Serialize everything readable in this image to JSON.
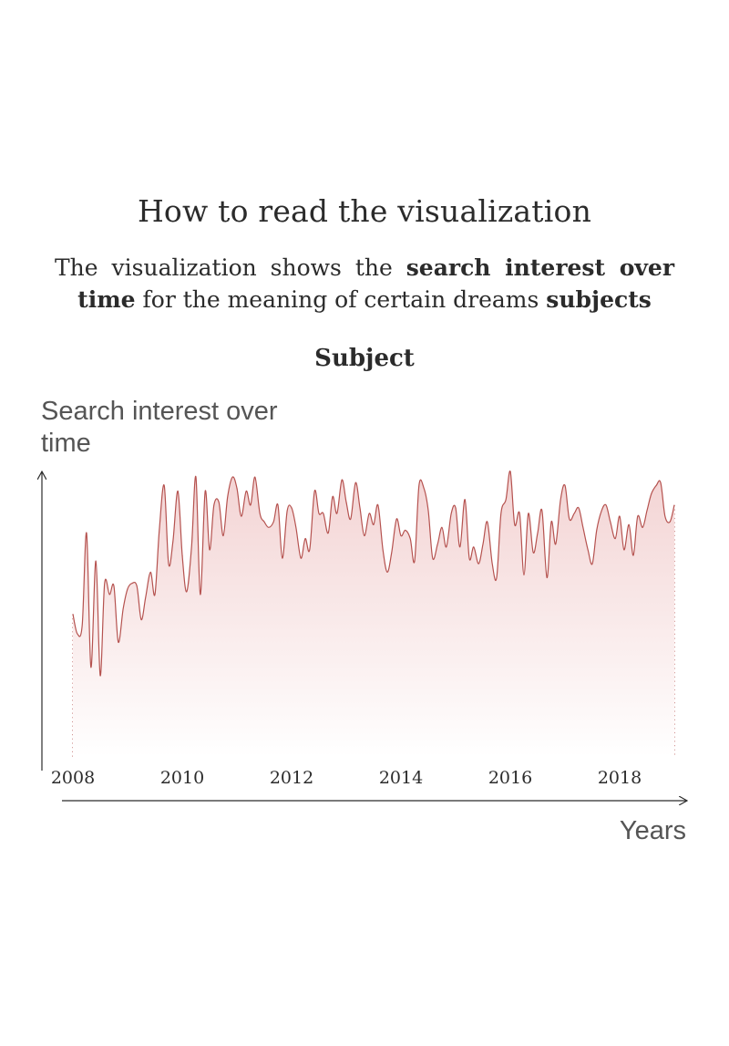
{
  "page": {
    "heading": "How to read the visualization",
    "intro_parts": [
      "The visualization shows the ",
      "search interest over time",
      " for the meaning of certain dreams ",
      "subjects"
    ],
    "subject_title": "Subject",
    "y_axis_label": "Search interest over time",
    "x_axis_label": "Years"
  },
  "colors": {
    "line": "#b5524f",
    "fill_top": "#f3d3d3",
    "fill_bottom": "#ffffff",
    "dotted": "#b5524f",
    "axis": "#2b2b2b",
    "text": "#2b2b2b",
    "label": "#555555"
  },
  "chart_data": {
    "type": "area",
    "title": "Subject",
    "xlabel": "Years",
    "ylabel": "Search interest over time",
    "x_ticks": [
      "2008",
      "2010",
      "2012",
      "2014",
      "2016",
      "2018"
    ],
    "xlim": [
      2008,
      2019
    ],
    "ylim": [
      0,
      100
    ],
    "grid": false,
    "note": "values estimated; y-axis has no numeric tick labels",
    "series": [
      {
        "x": [
          2008.0,
          2008.08,
          2008.17,
          2008.25,
          2008.33,
          2008.42,
          2008.5,
          2008.58,
          2008.67,
          2008.75,
          2008.83,
          2008.92,
          2009.0,
          2009.08,
          2009.17,
          2009.25,
          2009.33,
          2009.42,
          2009.5,
          2009.58,
          2009.67,
          2009.75,
          2009.83,
          2009.92,
          2010.0,
          2010.08,
          2010.17,
          2010.25,
          2010.33,
          2010.42,
          2010.5,
          2010.58,
          2010.67,
          2010.75,
          2010.83,
          2010.92,
          2011.0,
          2011.08,
          2011.17,
          2011.25,
          2011.33,
          2011.42,
          2011.5,
          2011.58,
          2011.67,
          2011.75,
          2011.83,
          2011.92,
          2012.0,
          2012.08,
          2012.17,
          2012.25,
          2012.33,
          2012.42,
          2012.5,
          2012.58,
          2012.67,
          2012.75,
          2012.83,
          2012.92,
          2013.0,
          2013.08,
          2013.17,
          2013.25,
          2013.33,
          2013.42,
          2013.5,
          2013.58,
          2013.67,
          2013.75,
          2013.83,
          2013.92,
          2014.0,
          2014.08,
          2014.17,
          2014.25,
          2014.33,
          2014.42,
          2014.5,
          2014.58,
          2014.67,
          2014.75,
          2014.83,
          2014.92,
          2015.0,
          2015.08,
          2015.17,
          2015.25,
          2015.33,
          2015.42,
          2015.5,
          2015.58,
          2015.67,
          2015.75,
          2015.83,
          2015.92,
          2016.0,
          2016.08,
          2016.17,
          2016.25,
          2016.33,
          2016.42,
          2016.5,
          2016.58,
          2016.67,
          2016.75,
          2016.83,
          2016.92,
          2017.0,
          2017.08,
          2017.17,
          2017.25,
          2017.33,
          2017.42,
          2017.5,
          2017.58,
          2017.67,
          2017.75,
          2017.83,
          2017.92,
          2018.0,
          2018.08,
          2018.17,
          2018.25,
          2018.33,
          2018.42,
          2018.5,
          2018.58,
          2018.67,
          2018.75,
          2018.83,
          2018.92,
          2019.0
        ],
        "y": [
          49,
          42,
          45,
          78,
          30,
          68,
          27,
          60,
          56,
          59,
          39,
          51,
          58,
          60,
          59,
          47,
          55,
          64,
          56,
          79,
          95,
          67,
          75,
          93,
          70,
          57,
          73,
          98,
          56,
          93,
          72,
          88,
          89,
          77,
          91,
          98,
          94,
          84,
          93,
          88,
          98,
          85,
          82,
          80,
          82,
          88,
          69,
          86,
          87,
          80,
          69,
          76,
          72,
          93,
          85,
          85,
          78,
          91,
          85,
          97,
          89,
          83,
          96,
          87,
          77,
          85,
          81,
          88,
          72,
          64,
          71,
          83,
          77,
          79,
          76,
          68,
          95,
          94,
          86,
          69,
          74,
          80,
          73,
          85,
          87,
          73,
          90,
          69,
          73,
          67,
          74,
          82,
          67,
          62,
          85,
          90,
          100,
          81,
          85,
          63,
          85,
          71,
          78,
          86,
          62,
          82,
          74,
          90,
          95,
          83,
          85,
          87,
          80,
          72,
          67,
          79,
          86,
          88,
          82,
          76,
          84,
          72,
          81,
          70,
          84,
          80,
          86,
          92,
          95,
          96,
          84,
          82,
          88
        ]
      }
    ]
  }
}
